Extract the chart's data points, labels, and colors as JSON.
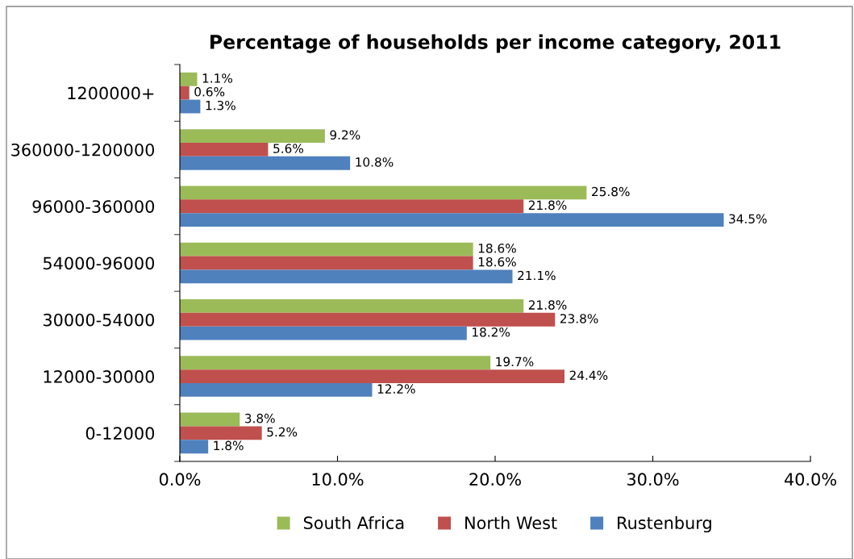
{
  "chart_data": {
    "type": "bar",
    "orientation": "horizontal",
    "title": "Percentage of households per income category, 2011",
    "categories": [
      "1200000+",
      "360000-1200000",
      "96000-360000",
      "54000-96000",
      "30000-54000",
      "12000-30000",
      "0-12000"
    ],
    "series": [
      {
        "name": "South Africa",
        "color": "#9bbb59",
        "values": [
          1.1,
          9.2,
          25.8,
          18.6,
          21.8,
          19.7,
          3.8
        ],
        "value_labels": [
          "1.1%",
          "9.2%",
          "25.8%",
          "18.6%",
          "21.8%",
          "19.7%",
          "3.8%"
        ]
      },
      {
        "name": "North West",
        "color": "#c0504d",
        "values": [
          0.6,
          5.6,
          21.8,
          18.6,
          23.8,
          24.4,
          5.2
        ],
        "value_labels": [
          "0.6%",
          "5.6%",
          "21.8%",
          "18.6%",
          "23.8%",
          "24.4%",
          "5.2%"
        ]
      },
      {
        "name": "Rustenburg",
        "color": "#4f81bd",
        "values": [
          1.3,
          10.8,
          34.5,
          21.1,
          18.2,
          12.2,
          1.8
        ],
        "value_labels": [
          "1.3%",
          "10.8%",
          "34.5%",
          "21.1%",
          "18.2%",
          "12.2%",
          "1.8%"
        ]
      }
    ],
    "xlim": [
      0,
      40
    ],
    "xticks": [
      {
        "value": 0,
        "label": "0.0%"
      },
      {
        "value": 10,
        "label": "10.0%"
      },
      {
        "value": 20,
        "label": "20.0%"
      },
      {
        "value": 30,
        "label": "30.0%"
      },
      {
        "value": 40,
        "label": "40.0%"
      }
    ],
    "grid": false,
    "legend": "bottom"
  }
}
